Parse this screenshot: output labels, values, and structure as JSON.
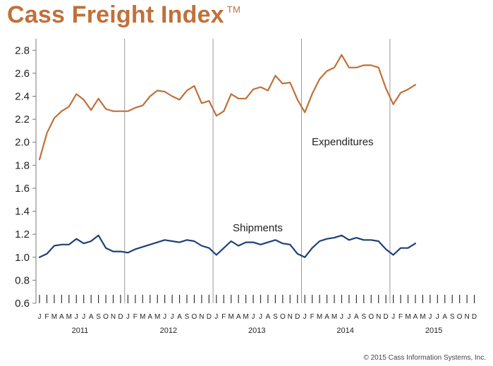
{
  "title": "Cass Freight Index",
  "title_mark": "TM",
  "copyright": "© 2015 Cass Information Systems, Inc.",
  "colors": {
    "expenditures": "#c0703a",
    "shipments": "#1f3f78",
    "title": "#c0703a",
    "grid": "#999999"
  },
  "chart_data": {
    "type": "line",
    "title": "Cass Freight Index",
    "xlabel": "",
    "ylabel": "",
    "ylim": [
      0.6,
      2.9
    ],
    "yticks": [
      0.6,
      0.8,
      1.0,
      1.2,
      1.4,
      1.6,
      1.8,
      2.0,
      2.2,
      2.4,
      2.6,
      2.8
    ],
    "ytick_labels": [
      "0.6",
      "0.8",
      "1.0",
      "1.2",
      "1.4",
      "1.6",
      "1.8",
      "2.0",
      "2.2",
      "2.4",
      "2.6",
      "2.8"
    ],
    "years": [
      "2011",
      "2012",
      "2013",
      "2014",
      "2015"
    ],
    "months_per_year": 12,
    "month_labels": [
      "J",
      "F",
      "M",
      "A",
      "M",
      "J",
      "J",
      "A",
      "S",
      "O",
      "N",
      "D"
    ],
    "grid": "vertical lines at year boundaries",
    "series": [
      {
        "name": "Expenditures",
        "values": [
          1.85,
          2.08,
          2.21,
          2.27,
          2.31,
          2.42,
          2.37,
          2.28,
          2.38,
          2.29,
          2.27,
          2.27,
          2.27,
          2.3,
          2.32,
          2.4,
          2.45,
          2.44,
          2.4,
          2.37,
          2.45,
          2.49,
          2.34,
          2.36,
          2.23,
          2.27,
          2.42,
          2.38,
          2.38,
          2.46,
          2.48,
          2.45,
          2.58,
          2.51,
          2.52,
          2.37,
          2.26,
          2.42,
          2.55,
          2.62,
          2.65,
          2.76,
          2.65,
          2.65,
          2.67,
          2.67,
          2.65,
          2.47,
          2.33,
          2.43,
          2.46,
          2.5
        ]
      },
      {
        "name": "Shipments",
        "values": [
          1.0,
          1.03,
          1.1,
          1.11,
          1.11,
          1.16,
          1.12,
          1.14,
          1.19,
          1.08,
          1.05,
          1.05,
          1.04,
          1.07,
          1.09,
          1.11,
          1.13,
          1.15,
          1.14,
          1.13,
          1.15,
          1.14,
          1.1,
          1.08,
          1.02,
          1.08,
          1.14,
          1.1,
          1.13,
          1.13,
          1.11,
          1.13,
          1.15,
          1.12,
          1.11,
          1.03,
          1.0,
          1.08,
          1.14,
          1.16,
          1.17,
          1.19,
          1.15,
          1.17,
          1.15,
          1.15,
          1.14,
          1.07,
          1.02,
          1.08,
          1.08,
          1.12
        ]
      }
    ],
    "annotations": [
      {
        "text": "Expenditures",
        "series": "Expenditures"
      },
      {
        "text": "Shipments",
        "series": "Shipments"
      }
    ]
  }
}
